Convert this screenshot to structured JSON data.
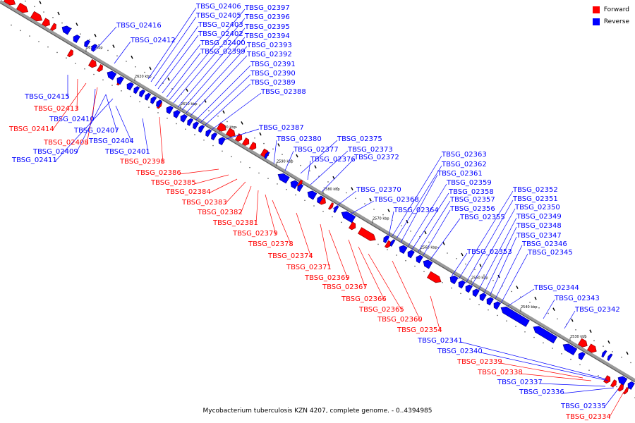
{
  "colors": {
    "forward": "#ff0000",
    "reverse": "#0000ff",
    "backbone": "#999999"
  },
  "legend": {
    "forward_label": "Forward",
    "reverse_label": "Reverse"
  },
  "caption": "Mycobacterium tuberculosis KZN 4207, complete genome. - 0..4394985",
  "scale_labels": [
    "2630 kbp",
    "2620 kbp",
    "2610 kbp",
    "2600 kbp",
    "2590 kbp",
    "2580 kbp",
    "2570 kbp",
    "2560 kbp",
    "2550 kbp",
    "2540 kbp",
    "2530 kbp"
  ],
  "chart_data": {
    "type": "linear-genome-map",
    "reverse_genes": [
      "TBSG_02416",
      "TBSG_02412",
      "TBSG_02406",
      "TBSG_02405",
      "TBSG_02403",
      "TBSG_02402",
      "TBSG_02400",
      "TBSG_02399",
      "TBSG_02397",
      "TBSG_02396",
      "TBSG_02395",
      "TBSG_02394",
      "TBSG_02393",
      "TBSG_02392",
      "TBSG_02391",
      "TBSG_02390",
      "TBSG_02389",
      "TBSG_02388",
      "TBSG_02387",
      "TBSG_02380",
      "TBSG_02377",
      "TBSG_02376",
      "TBSG_02375",
      "TBSG_02373",
      "TBSG_02372",
      "TBSG_02370",
      "TBSG_02368",
      "TBSG_02364",
      "TBSG_02363",
      "TBSG_02362",
      "TBSG_02361",
      "TBSG_02359",
      "TBSG_02358",
      "TBSG_02357",
      "TBSG_02356",
      "TBSG_02355",
      "TBSG_02353",
      "TBSG_02352",
      "TBSG_02351",
      "TBSG_02350",
      "TBSG_02349",
      "TBSG_02348",
      "TBSG_02347",
      "TBSG_02346",
      "TBSG_02345",
      "TBSG_02344",
      "TBSG_02343",
      "TBSG_02342",
      "TBSG_02415",
      "TBSG_02410",
      "TBSG_02407",
      "TBSG_02409",
      "TBSG_02404",
      "TBSG_02411",
      "TBSG_02401",
      "TBSG_02341",
      "TBSG_02340",
      "TBSG_02337",
      "TBSG_02336",
      "TBSG_02335"
    ],
    "forward_genes": [
      "TBSG_02413",
      "TBSG_02414",
      "TBSG_02408",
      "TBSG_02398",
      "TBSG_02386",
      "TBSG_02385",
      "TBSG_02384",
      "TBSG_02383",
      "TBSG_02382",
      "TBSG_02381",
      "TBSG_02379",
      "TBSG_02378",
      "TBSG_02374",
      "TBSG_02371",
      "TBSG_02369",
      "TBSG_02367",
      "TBSG_02366",
      "TBSG_02365",
      "TBSG_02360",
      "TBSG_02354",
      "TBSG_02339",
      "TBSG_02338",
      "TBSG_02334"
    ]
  }
}
